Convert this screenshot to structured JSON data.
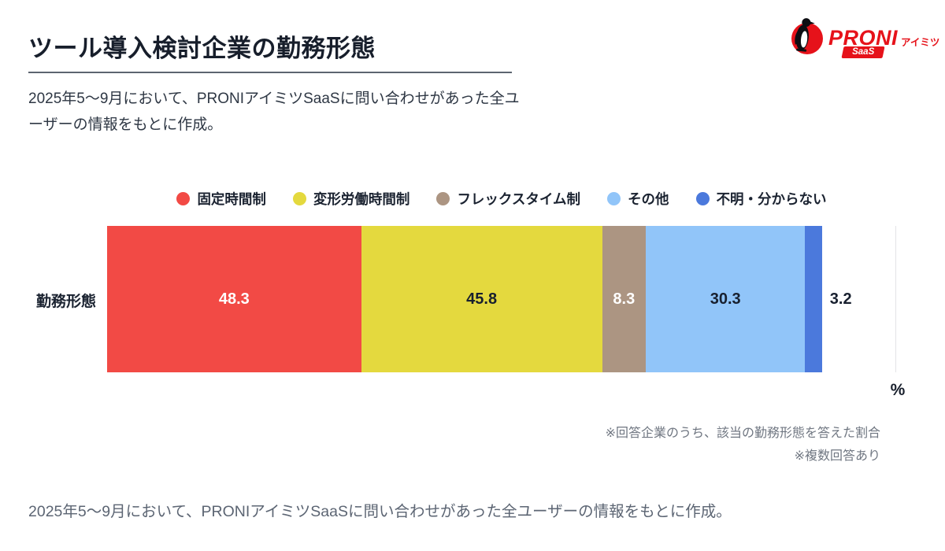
{
  "header": {
    "title": "ツール導入検討企業の勤務形態",
    "subtitle": "2025年5〜9月において、PRONIアイミツSaaSに問い合わせがあった全ユーザーの情報をもとに作成。",
    "logo": {
      "brand": "PRONI",
      "sub_brand": "アイミツ",
      "badge": "SaaS",
      "brand_color": "#e6121a"
    }
  },
  "chart_data": {
    "type": "bar",
    "orientation": "horizontal",
    "stacked": true,
    "title": "ツール導入検討企業の勤務形態",
    "categories": [
      "勤務形態"
    ],
    "series": [
      {
        "name": "固定時間制",
        "values": [
          48.3
        ],
        "color": "#f24a45",
        "label_color": "#ffffff"
      },
      {
        "name": "変形労働時間制",
        "values": [
          45.8
        ],
        "color": "#e4d93e",
        "label_color": "#18202f"
      },
      {
        "name": "フレックスタイム制",
        "values": [
          8.3
        ],
        "color": "#ac9582",
        "label_color": "#ffffff"
      },
      {
        "name": "その他",
        "values": [
          30.3
        ],
        "color": "#91c5f9",
        "label_color": "#18202f"
      },
      {
        "name": "不明・分からない",
        "values": [
          3.2
        ],
        "color": "#4b79dc",
        "label_color": "#18202f",
        "label_outside": true
      }
    ],
    "x_axis": {
      "min": 0,
      "max": 150,
      "unit": "%",
      "gridline_at_max": true
    },
    "y_axis_label": "勤務形態",
    "unit_label": "%",
    "legend_position": "top",
    "grid": "right-edge-only"
  },
  "notes": {
    "line1": "※回答企業のうち、該当の勤務形態を答えた割合",
    "line2": "※複数回答あり"
  },
  "footer": {
    "text": "2025年5〜9月において、PRONIアイミツSaaSに問い合わせがあった全ユーザーの情報をもとに作成。"
  }
}
